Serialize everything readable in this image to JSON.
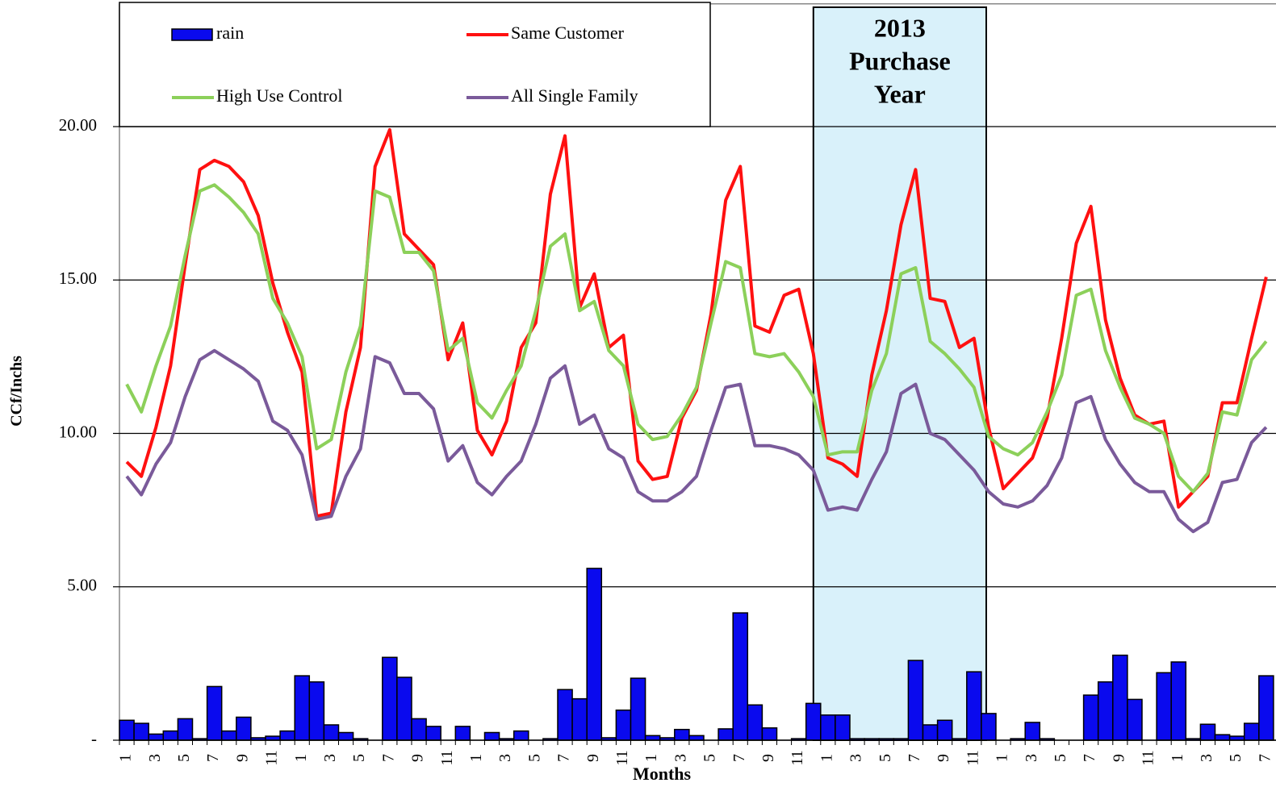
{
  "chart_data": {
    "type": "bar",
    "x_label": "Months",
    "y_label": "CCf/Inchs",
    "categories": [
      "1",
      null,
      "3",
      null,
      "5",
      null,
      "7",
      null,
      "9",
      null,
      "11",
      null,
      "1",
      null,
      "3",
      null,
      "5",
      null,
      "7",
      null,
      "9",
      null,
      "11",
      null,
      "1",
      null,
      "3",
      null,
      "5",
      null,
      "7",
      null,
      "9",
      null,
      "11",
      null,
      "1",
      null,
      "3",
      null,
      "5",
      null,
      "7",
      null,
      "9",
      null,
      "11",
      null,
      "1",
      null,
      "3",
      null,
      "5",
      null,
      "7",
      null,
      "9",
      null,
      "11",
      null,
      "1",
      null,
      "3",
      null,
      "5",
      null,
      "7",
      null,
      "9",
      null,
      "11",
      null,
      "1",
      null,
      "3",
      null,
      "5",
      null,
      "7"
    ],
    "ylim": [
      0,
      24
    ],
    "yticks": [
      {
        "value": 0,
        "label": "-"
      },
      {
        "value": 5,
        "label": "5.00"
      },
      {
        "value": 10,
        "label": "10.00"
      },
      {
        "value": 15,
        "label": "15.00"
      },
      {
        "value": 20,
        "label": "20.00"
      }
    ],
    "grid": true,
    "legend": "top-left",
    "annotation": {
      "text": [
        "2013",
        "Purchase",
        "Year"
      ],
      "color": "#d9f1fa"
    },
    "series": [
      {
        "name": "rain",
        "type": "bar",
        "color": "#0a0aee",
        "values": [
          0.65,
          0.55,
          0.2,
          0.3,
          0.7,
          0.05,
          1.75,
          0.3,
          0.75,
          0.08,
          0.13,
          0.3,
          2.1,
          1.9,
          0.5,
          0.25,
          0.05,
          0,
          2.7,
          2.05,
          0.7,
          0.45,
          0,
          0.45,
          0,
          0.25,
          0.05,
          0.3,
          0,
          0.05,
          1.65,
          1.35,
          5.6,
          0.08,
          0.98,
          2.02,
          0.15,
          0.08,
          0.35,
          0.15,
          0,
          0.37,
          4.15,
          1.15,
          0.4,
          0,
          0.05,
          1.2,
          0.82,
          0.82,
          0.05,
          0.05,
          0.05,
          0.05,
          2.6,
          0.5,
          0.65,
          0.05,
          2.23,
          0.87,
          0,
          0.05,
          0.58,
          0.05,
          0,
          0,
          1.47,
          1.9,
          2.77,
          1.33,
          0,
          2.2,
          2.55,
          0.05,
          0.52,
          0.18,
          0.13,
          0.55,
          2.1
        ]
      },
      {
        "name": "Same Customer",
        "type": "line",
        "color": "#ff1010",
        "values": [
          9.07,
          8.6,
          10.2,
          12.2,
          15.5,
          18.6,
          18.9,
          18.7,
          18.2,
          17.1,
          14.9,
          13.3,
          12.0,
          7.3,
          7.4,
          10.7,
          12.8,
          18.7,
          19.9,
          16.5,
          16.0,
          15.5,
          12.4,
          13.6,
          10.1,
          9.3,
          10.4,
          12.8,
          13.6,
          17.8,
          19.7,
          14.1,
          15.2,
          12.8,
          13.2,
          9.1,
          8.5,
          8.6,
          10.5,
          11.4,
          13.9,
          17.6,
          18.7,
          13.5,
          13.3,
          14.5,
          14.7,
          12.6,
          9.2,
          9.0,
          8.6,
          11.9,
          14.0,
          16.8,
          18.6,
          14.4,
          14.3,
          12.8,
          13.1,
          10.2,
          8.2,
          8.7,
          9.2,
          10.5,
          13.1,
          16.2,
          17.4,
          13.7,
          11.8,
          10.6,
          10.3,
          10.4,
          7.6,
          8.1,
          8.6,
          11.0,
          11.0,
          13.1,
          15.1
        ]
      },
      {
        "name": "High Use Control",
        "type": "line",
        "color": "#8cd05a",
        "values": [
          11.6,
          10.7,
          12.2,
          13.5,
          15.8,
          17.9,
          18.1,
          17.7,
          17.2,
          16.5,
          14.4,
          13.6,
          12.5,
          9.5,
          9.8,
          12.0,
          13.5,
          17.9,
          17.7,
          15.9,
          15.9,
          15.3,
          12.7,
          13.1,
          11.0,
          10.5,
          11.4,
          12.2,
          14.0,
          16.1,
          16.5,
          14.0,
          14.3,
          12.7,
          12.2,
          10.3,
          9.8,
          9.9,
          10.6,
          11.5,
          13.6,
          15.6,
          15.4,
          12.6,
          12.5,
          12.6,
          12.0,
          11.2,
          9.3,
          9.4,
          9.4,
          11.4,
          12.6,
          15.2,
          15.4,
          13.0,
          12.6,
          12.1,
          11.5,
          9.9,
          9.5,
          9.3,
          9.7,
          10.7,
          11.9,
          14.5,
          14.7,
          12.7,
          11.5,
          10.5,
          10.3,
          10.0,
          8.6,
          8.1,
          8.7,
          10.7,
          10.6,
          12.4,
          13.0
        ]
      },
      {
        "name": "All Single Family",
        "type": "line",
        "color": "#7a5a9a",
        "values": [
          8.6,
          8.0,
          9.0,
          9.7,
          11.2,
          12.4,
          12.7,
          12.4,
          12.1,
          11.7,
          10.4,
          10.1,
          9.3,
          7.2,
          7.3,
          8.6,
          9.5,
          12.5,
          12.3,
          11.3,
          11.3,
          10.8,
          9.1,
          9.6,
          8.4,
          8.0,
          8.6,
          9.1,
          10.3,
          11.8,
          12.2,
          10.3,
          10.6,
          9.5,
          9.2,
          8.1,
          7.8,
          7.8,
          8.1,
          8.6,
          10.1,
          11.5,
          11.6,
          9.6,
          9.6,
          9.5,
          9.3,
          8.8,
          7.5,
          7.6,
          7.5,
          8.5,
          9.4,
          11.3,
          11.6,
          10.0,
          9.8,
          9.3,
          8.8,
          8.1,
          7.7,
          7.6,
          7.8,
          8.3,
          9.2,
          11.0,
          11.2,
          9.8,
          9.0,
          8.4,
          8.1,
          8.1,
          7.2,
          6.8,
          7.1,
          8.4,
          8.5,
          9.7,
          10.2
        ]
      }
    ]
  }
}
